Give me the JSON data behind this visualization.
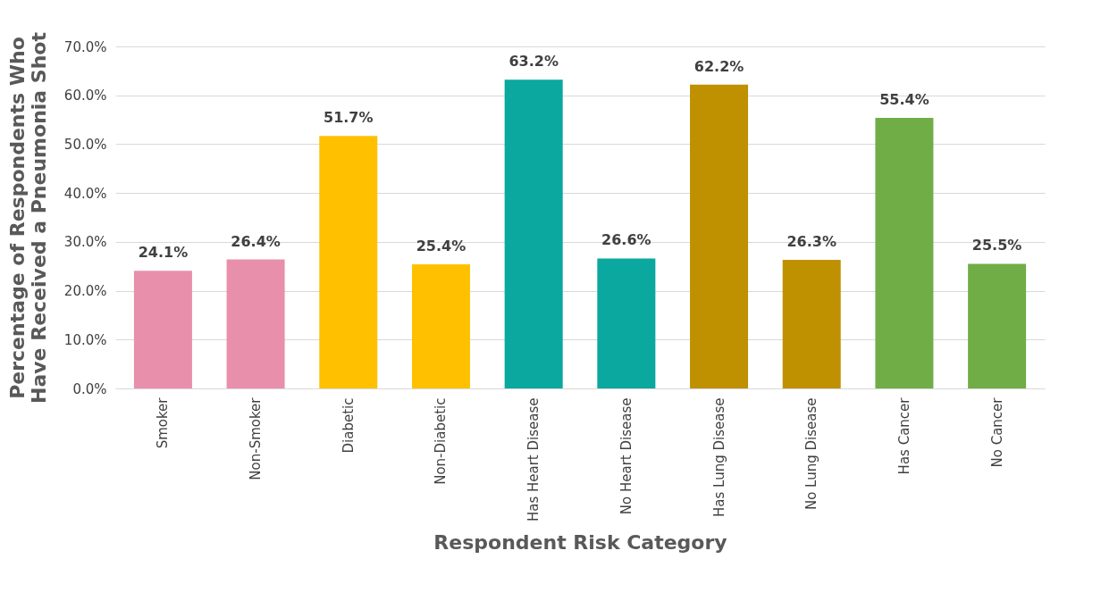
{
  "chart_data": {
    "type": "bar",
    "xlabel": "Respondent Risk Category",
    "ylabel": "Percentage of Respondents Who\nHave Received a Pneumonia Shot",
    "categories": [
      "Smoker",
      "Non-Smoker",
      "Diabetic",
      "Non-Diabetic",
      "Has Heart Disease",
      "No Heart Disease",
      "Has Lung Disease",
      "No Lung Disease",
      "Has Cancer",
      "No Cancer"
    ],
    "values": [
      24.1,
      26.4,
      51.7,
      25.4,
      63.2,
      26.6,
      62.2,
      26.3,
      55.4,
      25.5
    ],
    "colors": [
      "#e88fab",
      "#e88fab",
      "#ffc000",
      "#ffc000",
      "#0aa89e",
      "#0aa89e",
      "#bf9000",
      "#bf9000",
      "#70ad47",
      "#70ad47"
    ],
    "value_labels": [
      "24.1%",
      "26.4%",
      "51.7%",
      "25.4%",
      "63.2%",
      "26.6%",
      "62.2%",
      "26.3%",
      "55.4%",
      "25.5%"
    ],
    "ylim": [
      0,
      70
    ],
    "yticks": [
      {
        "value": 0,
        "label": "0.0%"
      },
      {
        "value": 10,
        "label": "10.0%"
      },
      {
        "value": 20,
        "label": "20.0%"
      },
      {
        "value": 30,
        "label": "30.0%"
      },
      {
        "value": 40,
        "label": "40.0%"
      },
      {
        "value": 50,
        "label": "50.0%"
      },
      {
        "value": 60,
        "label": "60.0%"
      },
      {
        "value": 70,
        "label": "70.0%"
      }
    ],
    "grid": "y"
  }
}
